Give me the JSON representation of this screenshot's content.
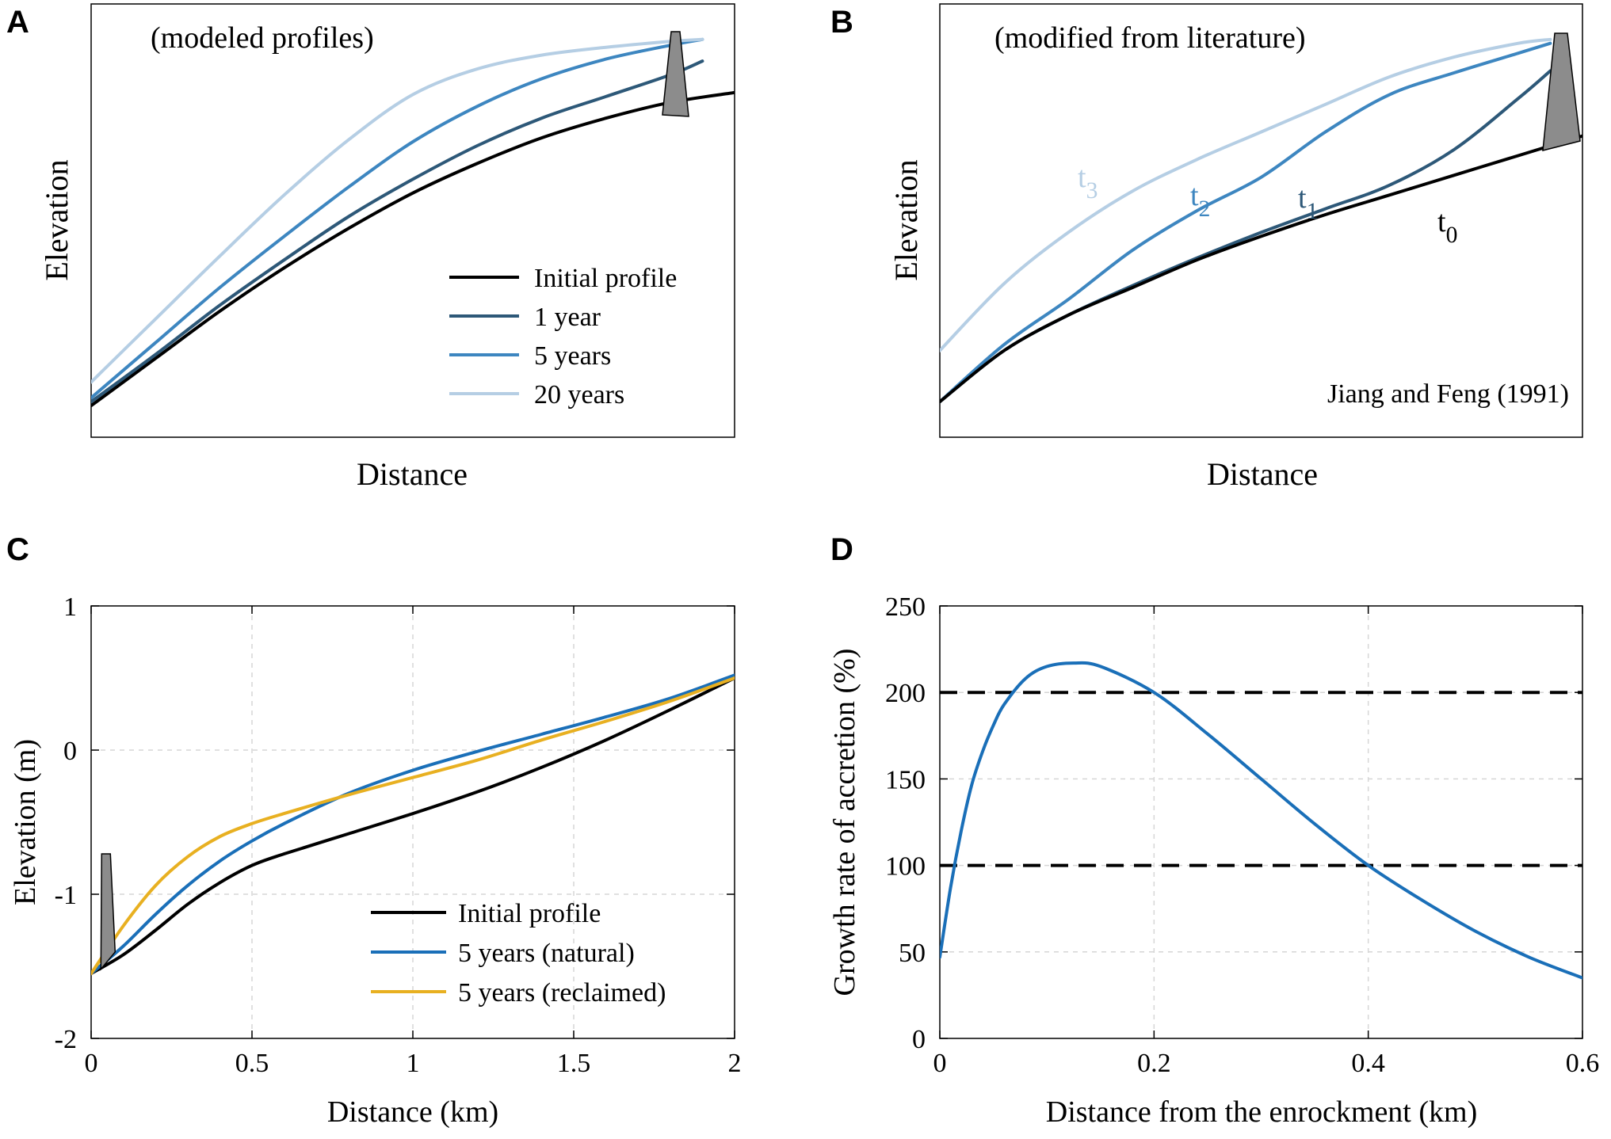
{
  "panel_labels": [
    "A",
    "B",
    "C",
    "D"
  ],
  "colors": {
    "initial": "#000000",
    "year1": "#2d5878",
    "year5": "#3d86c0",
    "year20": "#b5cee4",
    "natural": "#1a6fb8",
    "reclaimed": "#e8b021",
    "growth": "#1a6fb8",
    "enrockment": "#8c8c8c"
  },
  "chart_data": [
    {
      "panel": "A",
      "type": "line",
      "annotation": "(modeled profiles)",
      "xlabel": "Distance",
      "ylabel": "Elevation",
      "legend": "bottom-right",
      "legend_entries": [
        "Initial profile",
        "1 year",
        "5 years",
        "20 years"
      ],
      "note": "schematic, no axis ticks; x and y in normalized units 0-1",
      "series": [
        {
          "name": "Initial profile",
          "color_key": "initial",
          "x": [
            0,
            0.1,
            0.2,
            0.3,
            0.4,
            0.5,
            0.6,
            0.7,
            0.8,
            0.9,
            1.0
          ],
          "y": [
            0.08,
            0.2,
            0.32,
            0.43,
            0.53,
            0.62,
            0.695,
            0.76,
            0.81,
            0.85,
            0.875
          ]
        },
        {
          "name": "1 year",
          "color_key": "year1",
          "x": [
            0,
            0.1,
            0.2,
            0.3,
            0.4,
            0.5,
            0.6,
            0.7,
            0.8,
            0.9,
            0.95
          ],
          "y": [
            0.09,
            0.21,
            0.335,
            0.45,
            0.56,
            0.655,
            0.74,
            0.81,
            0.865,
            0.92,
            0.955
          ]
        },
        {
          "name": "5 years",
          "color_key": "year5",
          "x": [
            0,
            0.1,
            0.2,
            0.3,
            0.4,
            0.5,
            0.6,
            0.7,
            0.8,
            0.9,
            0.95
          ],
          "y": [
            0.1,
            0.24,
            0.38,
            0.51,
            0.635,
            0.75,
            0.84,
            0.91,
            0.96,
            0.995,
            1.01
          ]
        },
        {
          "name": "20 years",
          "color_key": "year20",
          "x": [
            0,
            0.1,
            0.2,
            0.3,
            0.4,
            0.5,
            0.6,
            0.7,
            0.8,
            0.9,
            0.95
          ],
          "y": [
            0.14,
            0.3,
            0.46,
            0.615,
            0.755,
            0.87,
            0.935,
            0.97,
            0.99,
            1.005,
            1.01
          ]
        }
      ]
    },
    {
      "panel": "B",
      "type": "line",
      "annotation": "(modified from literature)",
      "citation": "Jiang and Feng (1991)",
      "xlabel": "Distance",
      "ylabel": "Elevation",
      "curve_labels": [
        {
          "base": "t",
          "sub": "3",
          "color_key": "year20"
        },
        {
          "base": "t",
          "sub": "2",
          "color_key": "year5"
        },
        {
          "base": "t",
          "sub": "1",
          "color_key": "year1"
        },
        {
          "base": "t",
          "sub": "0",
          "color_key": "initial"
        }
      ],
      "note": "schematic, no axis ticks; x and y in normalized units 0-1",
      "series": [
        {
          "name": "t0",
          "color_key": "initial",
          "x": [
            0,
            0.1,
            0.2,
            0.3,
            0.4,
            0.5,
            0.6,
            0.7,
            0.8,
            0.9,
            1.0
          ],
          "y": [
            0.09,
            0.22,
            0.31,
            0.38,
            0.45,
            0.51,
            0.565,
            0.615,
            0.665,
            0.715,
            0.765
          ]
        },
        {
          "name": "t1",
          "color_key": "year1",
          "x": [
            0,
            0.1,
            0.2,
            0.3,
            0.4,
            0.5,
            0.6,
            0.7,
            0.8,
            0.9,
            0.95
          ],
          "y": [
            0.09,
            0.22,
            0.31,
            0.385,
            0.455,
            0.52,
            0.58,
            0.64,
            0.73,
            0.86,
            0.93
          ]
        },
        {
          "name": "t2",
          "color_key": "year5",
          "x": [
            0,
            0.1,
            0.2,
            0.3,
            0.4,
            0.5,
            0.6,
            0.7,
            0.8,
            0.9,
            0.95
          ],
          "y": [
            0.09,
            0.235,
            0.35,
            0.475,
            0.575,
            0.66,
            0.775,
            0.87,
            0.925,
            0.975,
            1.0
          ]
        },
        {
          "name": "t3",
          "color_key": "year20",
          "x": [
            0,
            0.1,
            0.2,
            0.3,
            0.4,
            0.5,
            0.6,
            0.7,
            0.8,
            0.9,
            0.95
          ],
          "y": [
            0.22,
            0.39,
            0.52,
            0.625,
            0.705,
            0.775,
            0.845,
            0.915,
            0.965,
            1.0,
            1.01
          ]
        }
      ]
    },
    {
      "panel": "C",
      "type": "line",
      "xlabel": "Distance (km)",
      "ylabel": "Elevation (m)",
      "xlim": [
        0,
        2
      ],
      "ylim": [
        -2,
        1
      ],
      "xticks": [
        0,
        0.5,
        1,
        1.5,
        2
      ],
      "xtick_labels": [
        "0",
        "0.5",
        "1",
        "1.5",
        "2"
      ],
      "yticks": [
        -2,
        -1,
        0,
        1
      ],
      "ytick_labels": [
        "-2",
        "-1",
        "0",
        "1"
      ],
      "grid": true,
      "legend": "bottom-right",
      "legend_entries": [
        "Initial profile",
        "5 years (natural)",
        "5 years (reclaimed)"
      ],
      "series": [
        {
          "name": "Initial profile",
          "color_key": "initial",
          "x": [
            0,
            0.1,
            0.2,
            0.3,
            0.4,
            0.5,
            0.6,
            0.8,
            1.0,
            1.2,
            1.4,
            1.6,
            1.8,
            2.0
          ],
          "y": [
            -1.55,
            -1.42,
            -1.25,
            -1.07,
            -0.92,
            -0.8,
            -0.72,
            -0.58,
            -0.44,
            -0.29,
            -0.12,
            0.07,
            0.28,
            0.5
          ]
        },
        {
          "name": "5 years (natural)",
          "color_key": "natural",
          "x": [
            0,
            0.1,
            0.2,
            0.3,
            0.4,
            0.5,
            0.6,
            0.8,
            1.0,
            1.2,
            1.4,
            1.6,
            1.8,
            2.0
          ],
          "y": [
            -1.55,
            -1.36,
            -1.14,
            -0.94,
            -0.77,
            -0.63,
            -0.51,
            -0.3,
            -0.14,
            -0.01,
            0.11,
            0.23,
            0.36,
            0.52
          ]
        },
        {
          "name": "5 years (reclaimed)",
          "color_key": "reclaimed",
          "x": [
            0,
            0.1,
            0.2,
            0.3,
            0.4,
            0.5,
            0.6,
            0.8,
            1.0,
            1.2,
            1.4,
            1.6,
            1.8,
            2.0
          ],
          "y": [
            -1.55,
            -1.22,
            -0.94,
            -0.74,
            -0.6,
            -0.51,
            -0.44,
            -0.31,
            -0.19,
            -0.07,
            0.07,
            0.2,
            0.34,
            0.5
          ]
        }
      ],
      "enrockment": {
        "x": 0.05,
        "top_y": -0.72,
        "base_y": -1.52
      }
    },
    {
      "panel": "D",
      "type": "line",
      "xlabel": "Distance from the enrockment (km)",
      "ylabel": "Growth rate of accretion (%)",
      "xlim": [
        0,
        0.6
      ],
      "ylim": [
        0,
        250
      ],
      "xticks": [
        0,
        0.2,
        0.4,
        0.6
      ],
      "xtick_labels": [
        "0",
        "0.2",
        "0.4",
        "0.6"
      ],
      "yticks": [
        0,
        50,
        100,
        150,
        200,
        250
      ],
      "ytick_labels": [
        "0",
        "50",
        "100",
        "150",
        "200",
        "250"
      ],
      "grid": true,
      "reference_lines": [
        100,
        200
      ],
      "series": [
        {
          "name": "Growth rate",
          "color_key": "growth",
          "x": [
            0,
            0.01,
            0.02,
            0.03,
            0.04,
            0.05,
            0.06,
            0.08,
            0.1,
            0.125,
            0.15,
            0.2,
            0.25,
            0.3,
            0.35,
            0.4,
            0.45,
            0.5,
            0.55,
            0.6
          ],
          "y": [
            47,
            87,
            120,
            147,
            166,
            181,
            193,
            208,
            215,
            217,
            215,
            200,
            176,
            150,
            124,
            100,
            80,
            62,
            47,
            35
          ]
        }
      ]
    }
  ]
}
